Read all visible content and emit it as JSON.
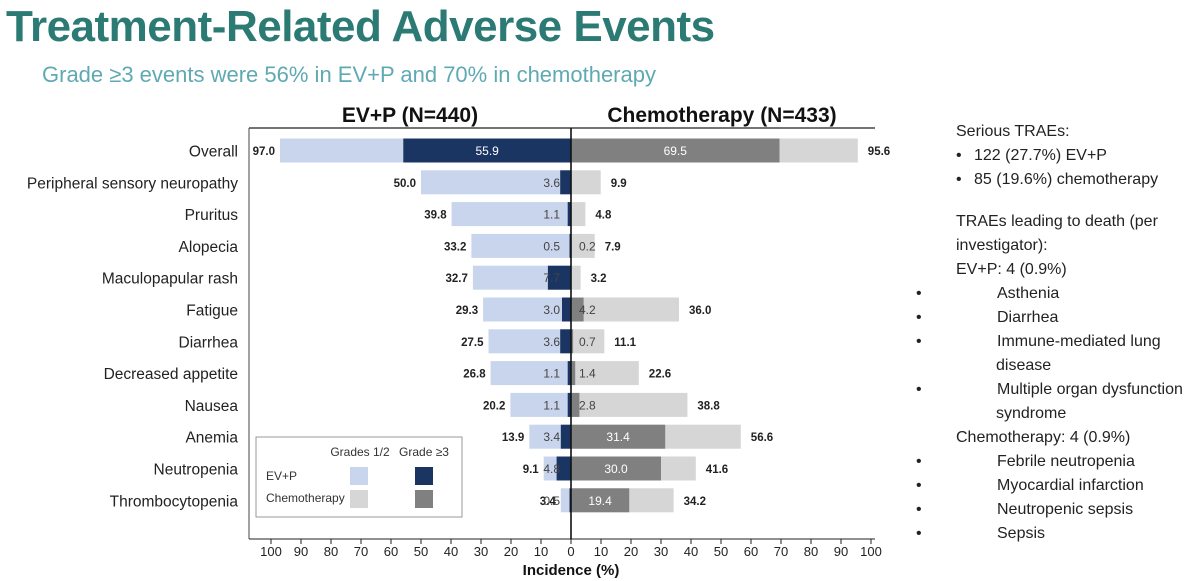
{
  "title": "Treatment-Related Adverse Events",
  "subtitle": "Grade ≥3 events were 56% in EV+P and 70% in chemotherapy",
  "colors": {
    "evp_g12": "#c9d5ec",
    "evp_g3": "#1b3563",
    "chemo_g12": "#d6d6d6",
    "chemo_g3": "#808080",
    "title": "#2b7b74",
    "subtitle": "#5fa9b3"
  },
  "chart_data": {
    "type": "bar",
    "orientation": "horizontal-butterfly",
    "left_header": "EV+P (N=440)",
    "right_header": "Chemotherapy (N=433)",
    "xlabel": "Incidence (%)",
    "xlim": [
      -100,
      100
    ],
    "x_ticks": [
      "100",
      "90",
      "80",
      "70",
      "60",
      "50",
      "40",
      "30",
      "20",
      "10",
      "0",
      "10",
      "20",
      "30",
      "40",
      "50",
      "60",
      "70",
      "80",
      "90",
      "100"
    ],
    "categories": [
      "Overall",
      "Peripheral sensory neuropathy",
      "Pruritus",
      "Alopecia",
      "Maculopapular rash",
      "Fatigue",
      "Diarrhea",
      "Decreased appetite",
      "Nausea",
      "Anemia",
      "Neutropenia",
      "Thrombocytopenia"
    ],
    "series": [
      {
        "name": "EV+P",
        "side": "left",
        "total": [
          97.0,
          50.0,
          39.8,
          33.2,
          32.7,
          29.3,
          27.5,
          26.8,
          20.2,
          13.9,
          9.1,
          3.4
        ],
        "grade3": [
          55.9,
          3.6,
          1.1,
          0.5,
          7.7,
          3.0,
          3.6,
          1.1,
          1.1,
          3.4,
          4.8,
          0.5
        ]
      },
      {
        "name": "Chemotherapy",
        "side": "right",
        "total": [
          95.6,
          9.9,
          4.8,
          7.9,
          3.2,
          36.0,
          11.1,
          22.6,
          38.8,
          56.6,
          41.6,
          34.2
        ],
        "grade3": [
          69.5,
          null,
          null,
          0.2,
          null,
          4.2,
          0.7,
          1.4,
          2.8,
          31.4,
          30.0,
          19.4
        ]
      }
    ],
    "total_labels_left": [
      "97.0",
      "50.0",
      "39.8",
      "33.2",
      "32.7",
      "29.3",
      "27.5",
      "26.8",
      "20.2",
      "13.9",
      "9.1",
      "3.4"
    ],
    "total_labels_right": [
      "95.6",
      "9.9",
      "4.8",
      "7.9",
      "3.2",
      "36.0",
      "11.1",
      "22.6",
      "38.8",
      "56.6",
      "41.6",
      "34.2"
    ],
    "g3_labels_left": [
      "55.9",
      "3.6",
      "1.1",
      "0.5",
      "7.7",
      "3.0",
      "3.6",
      "1.1",
      "1.1",
      "3.4",
      "4.8",
      "0.5"
    ],
    "g3_labels_right": [
      "69.5",
      "",
      "",
      "0.2",
      "",
      "4.2",
      "0.7",
      "1.4",
      "2.8",
      "31.4",
      "30.0",
      "19.4"
    ],
    "legend": {
      "col1": "Grades 1/2",
      "col2": "Grade ≥3",
      "row1": "EV+P",
      "row2": "Chemotherapy",
      "placement": "bottom-left"
    }
  },
  "notes": {
    "serious_heading": "Serious TRAEs:",
    "serious_items": [
      "122 (27.7%) EV+P",
      "85 (19.6%) chemotherapy"
    ],
    "death_heading": "TRAEs leading to death (per investigator):",
    "evp_heading": "EV+P: 4 (0.9%)",
    "evp_items": [
      "Asthenia",
      "Diarrhea",
      "Immune-mediated lung disease",
      "Multiple organ dysfunction syndrome"
    ],
    "chemo_heading": "Chemotherapy: 4 (0.9%)",
    "chemo_items": [
      "Febrile neutropenia",
      "Myocardial infarction",
      "Neutropenic sepsis",
      "Sepsis"
    ],
    "bullet": "•"
  }
}
